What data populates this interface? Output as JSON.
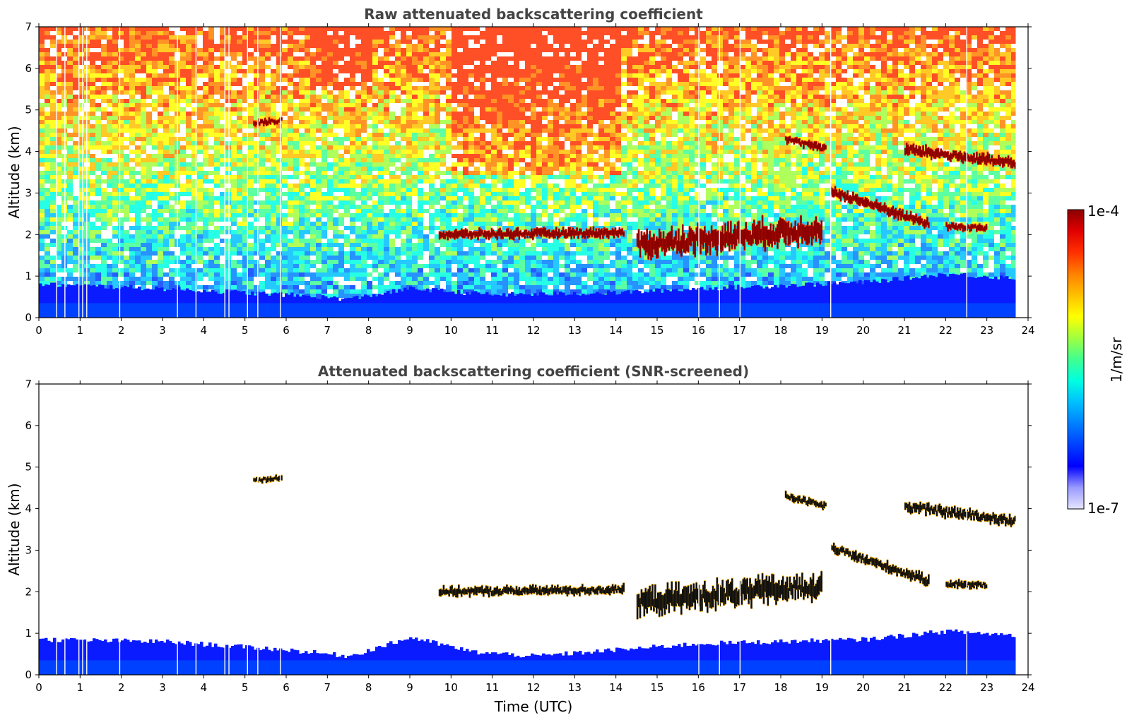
{
  "chart_data": [
    {
      "type": "heatmap",
      "title": "Raw attenuated backscattering coefficient",
      "xlabel": "",
      "ylabel": "Altitude (km)",
      "xlim": [
        0,
        24
      ],
      "ylim": [
        0,
        7
      ],
      "xticks": [
        "0",
        "1",
        "2",
        "3",
        "4",
        "5",
        "6",
        "7",
        "8",
        "9",
        "10",
        "11",
        "12",
        "13",
        "14",
        "15",
        "16",
        "17",
        "18",
        "19",
        "20",
        "21",
        "22",
        "23",
        "24"
      ],
      "yticks": [
        "0",
        "1",
        "2",
        "3",
        "4",
        "5",
        "6",
        "7"
      ],
      "background_noise": true,
      "boundary_layer_top_km": [
        [
          0,
          0.8
        ],
        [
          3,
          0.7
        ],
        [
          6,
          0.55
        ],
        [
          7.5,
          0.45
        ],
        [
          9,
          0.7
        ],
        [
          11,
          0.55
        ],
        [
          14,
          0.6
        ],
        [
          16,
          0.7
        ],
        [
          20,
          0.85
        ],
        [
          22,
          1.05
        ],
        [
          23.7,
          0.95
        ]
      ],
      "layers": [
        {
          "name": "aerosol-5.5",
          "start": 5.2,
          "end": 5.9,
          "alt_start": 4.68,
          "alt_end": 4.75,
          "thickness": 0.12
        },
        {
          "name": "cloud-10-14",
          "start": 9.7,
          "end": 14.2,
          "alt_start": 2.0,
          "alt_end": 2.05,
          "thickness": 0.18
        },
        {
          "name": "cloud-14.5-19",
          "start": 14.5,
          "end": 19.0,
          "alt_start": 1.75,
          "alt_end": 2.15,
          "thickness": 0.5
        },
        {
          "name": "cloud-18-19",
          "start": 18.1,
          "end": 19.1,
          "alt_start": 4.3,
          "alt_end": 4.05,
          "thickness": 0.15
        },
        {
          "name": "cloud-19-21.6",
          "start": 19.2,
          "end": 21.6,
          "alt_start": 3.05,
          "alt_end": 2.25,
          "thickness": 0.2
        },
        {
          "name": "cloud-22-23",
          "start": 22.0,
          "end": 23.0,
          "alt_start": 2.2,
          "alt_end": 2.15,
          "thickness": 0.15
        },
        {
          "name": "cloud-21-23.7",
          "start": 21.0,
          "end": 23.7,
          "alt_start": 4.05,
          "alt_end": 3.7,
          "thickness": 0.22
        }
      ],
      "data_end_hour": 23.7
    },
    {
      "type": "heatmap",
      "title": "Attenuated backscattering coefficient (SNR-screened)",
      "xlabel": "Time (UTC)",
      "ylabel": "Altitude (km)",
      "xlim": [
        0,
        24
      ],
      "ylim": [
        0,
        7
      ],
      "xticks": [
        "0",
        "1",
        "2",
        "3",
        "4",
        "5",
        "6",
        "7",
        "8",
        "9",
        "10",
        "11",
        "12",
        "13",
        "14",
        "15",
        "16",
        "17",
        "18",
        "19",
        "20",
        "21",
        "22",
        "23",
        "24"
      ],
      "yticks": [
        "0",
        "1",
        "2",
        "3",
        "4",
        "5",
        "6",
        "7"
      ],
      "background_noise": false,
      "boundary_layer_top_km": [
        [
          0,
          0.85
        ],
        [
          3,
          0.8
        ],
        [
          6,
          0.6
        ],
        [
          7.5,
          0.45
        ],
        [
          9,
          0.9
        ],
        [
          10.5,
          0.55
        ],
        [
          12,
          0.45
        ],
        [
          14,
          0.6
        ],
        [
          16,
          0.75
        ],
        [
          20,
          0.85
        ],
        [
          22,
          1.05
        ],
        [
          23.7,
          0.95
        ]
      ],
      "layers": [
        {
          "name": "aerosol-5.5",
          "start": 5.2,
          "end": 5.9,
          "alt_start": 4.68,
          "alt_end": 4.75,
          "thickness": 0.12
        },
        {
          "name": "cloud-10-14",
          "start": 9.7,
          "end": 14.2,
          "alt_start": 2.0,
          "alt_end": 2.05,
          "thickness": 0.18
        },
        {
          "name": "cloud-14.5-19",
          "start": 14.5,
          "end": 19.0,
          "alt_start": 1.75,
          "alt_end": 2.15,
          "thickness": 0.5
        },
        {
          "name": "cloud-18-19",
          "start": 18.1,
          "end": 19.1,
          "alt_start": 4.3,
          "alt_end": 4.05,
          "thickness": 0.15
        },
        {
          "name": "cloud-19-21.6",
          "start": 19.2,
          "end": 21.6,
          "alt_start": 3.05,
          "alt_end": 2.25,
          "thickness": 0.2
        },
        {
          "name": "cloud-22-23",
          "start": 22.0,
          "end": 23.0,
          "alt_start": 2.2,
          "alt_end": 2.15,
          "thickness": 0.15
        },
        {
          "name": "cloud-21-23.7",
          "start": 21.0,
          "end": 23.7,
          "alt_start": 4.05,
          "alt_end": 3.7,
          "thickness": 0.22
        }
      ],
      "data_end_hour": 23.7
    }
  ],
  "colorbar": {
    "max_label": "1e-4",
    "min_label": "1e-7",
    "unit_label": "1/m/sr",
    "colors": [
      "#e6e6ff",
      "#9a9aff",
      "#0000ff",
      "#0040ff",
      "#0080ff",
      "#00c0ff",
      "#00ffe0",
      "#40ff90",
      "#a0ff40",
      "#ffff00",
      "#ffc000",
      "#ff8000",
      "#ff3000",
      "#e00000",
      "#8b0000"
    ]
  }
}
